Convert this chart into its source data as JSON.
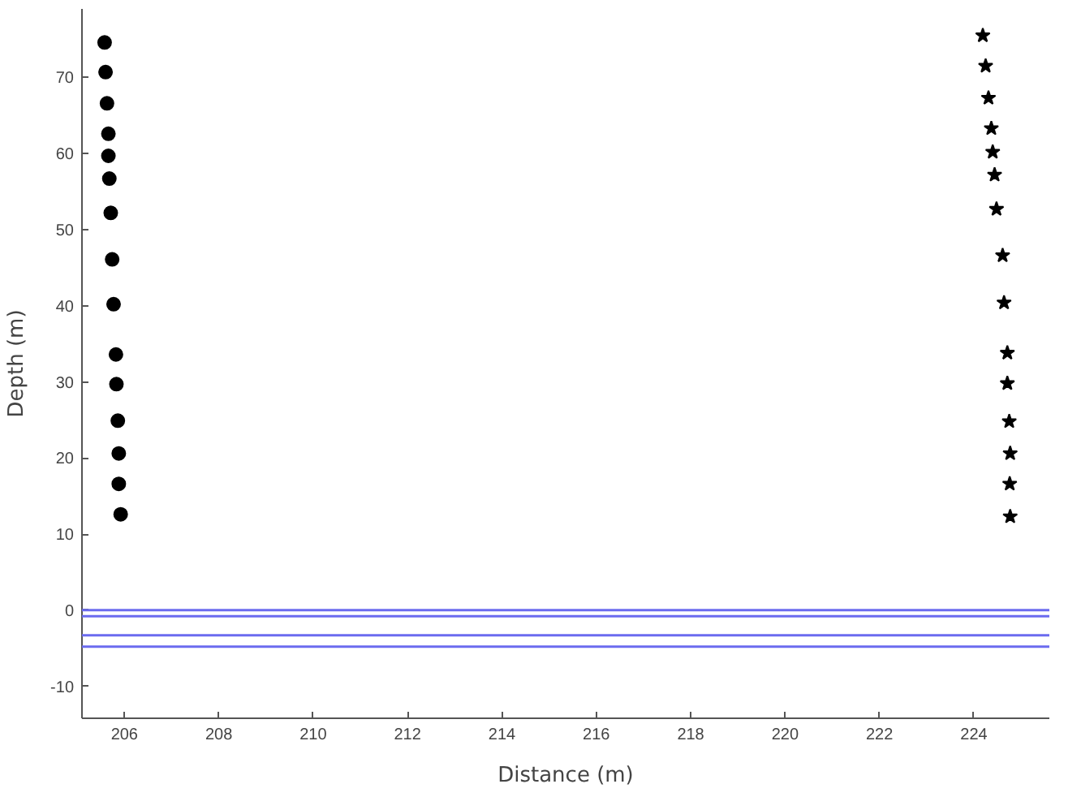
{
  "chart_data": {
    "type": "scatter",
    "xlabel": "Distance (m)",
    "ylabel": "Depth (m)",
    "xlim": [
      205.1,
      225.6
    ],
    "ylim": [
      -14.2,
      79
    ],
    "xticks": [
      206,
      208,
      210,
      212,
      214,
      216,
      218,
      220,
      222,
      224
    ],
    "yticks": [
      -10,
      0,
      10,
      20,
      30,
      40,
      50,
      60,
      70
    ],
    "grid": false,
    "series": [
      {
        "color": "#000000",
        "marker": "circle",
        "x": [
          205.58,
          205.6,
          205.63,
          205.66,
          205.66,
          205.68,
          205.71,
          205.74,
          205.77,
          205.82,
          205.83,
          205.86,
          205.88,
          205.88,
          205.92
        ],
        "values": [
          74.6,
          70.7,
          66.6,
          62.6,
          59.7,
          56.7,
          52.2,
          46.1,
          40.2,
          33.6,
          29.7,
          24.9,
          20.6,
          16.6,
          12.6
        ]
      },
      {
        "color": "#000000",
        "marker": "star",
        "x": [
          224.19,
          224.25,
          224.31,
          224.37,
          224.4,
          224.44,
          224.48,
          224.61,
          224.64,
          224.71,
          224.71,
          224.75,
          224.77,
          224.76,
          224.77
        ],
        "values": [
          75.5,
          71.5,
          67.3,
          63.3,
          60.2,
          57.2,
          52.7,
          46.6,
          40.4,
          33.8,
          29.8,
          24.8,
          20.6,
          16.6,
          12.3
        ]
      }
    ],
    "ref_lines": [
      {
        "axis": "y",
        "value": 0,
        "color": "#6b6bef"
      },
      {
        "axis": "y",
        "value": -0.8,
        "color": "#6b6bef"
      },
      {
        "axis": "y",
        "value": -3.3,
        "color": "#6b6bef"
      },
      {
        "axis": "y",
        "value": -4.8,
        "color": "#6b6bef"
      }
    ]
  }
}
